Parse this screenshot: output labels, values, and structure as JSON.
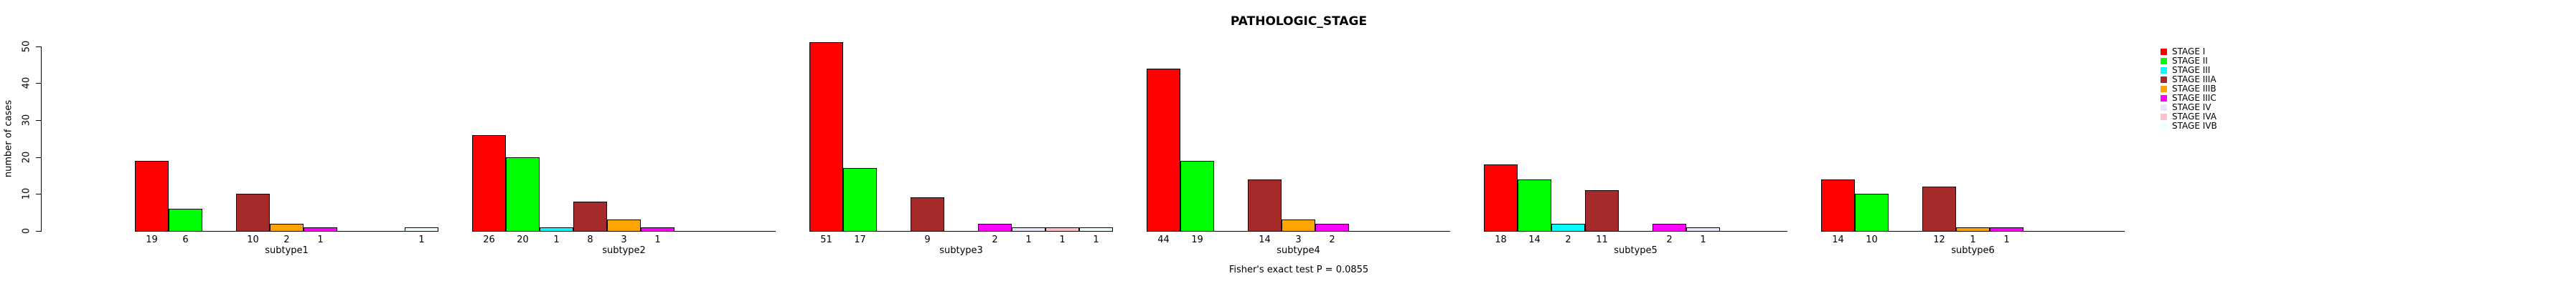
{
  "chart_data": {
    "type": "bar",
    "title": "PATHOLOGIC_STAGE",
    "subtitle": "Fisher's exact test P = 0.0855",
    "ylabel": "number of cases",
    "ylim": [
      0,
      50
    ],
    "yticks": [
      0,
      10,
      20,
      30,
      40,
      50
    ],
    "grid": false,
    "legend_position": "right",
    "categories": [
      "subtype1",
      "subtype2",
      "subtype3",
      "subtype4",
      "subtype5",
      "subtype6"
    ],
    "series": [
      {
        "name": "STAGE I",
        "color": "#FF0000",
        "values": [
          19,
          26,
          51,
          44,
          18,
          14
        ]
      },
      {
        "name": "STAGE II",
        "color": "#00FF00",
        "values": [
          6,
          20,
          17,
          19,
          14,
          10
        ]
      },
      {
        "name": "STAGE III",
        "color": "#00FFFF",
        "values": [
          0,
          1,
          0,
          0,
          2,
          0
        ]
      },
      {
        "name": "STAGE IIIA",
        "color": "#A52A2A",
        "values": [
          10,
          8,
          9,
          14,
          11,
          12
        ]
      },
      {
        "name": "STAGE IIIB",
        "color": "#FFA500",
        "values": [
          2,
          3,
          0,
          3,
          0,
          1
        ]
      },
      {
        "name": "STAGE IIIC",
        "color": "#FF00FF",
        "values": [
          1,
          1,
          2,
          2,
          2,
          1
        ]
      },
      {
        "name": "STAGE IV",
        "color": "#E6E6FA",
        "values": [
          0,
          0,
          1,
          0,
          1,
          0
        ]
      },
      {
        "name": "STAGE IVA",
        "color": "#FFC0CB",
        "values": [
          0,
          0,
          1,
          0,
          0,
          0
        ]
      },
      {
        "name": "STAGE IVB",
        "color": "#F0FFFF",
        "values": [
          1,
          0,
          1,
          0,
          0,
          0
        ]
      }
    ]
  }
}
